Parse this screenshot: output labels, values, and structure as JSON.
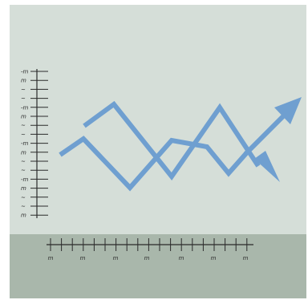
{
  "colors": {
    "frame": "#ffffff",
    "panel_top": "#d5ded8",
    "panel_bottom": "#a9b7ab",
    "line": "#6f9fd0",
    "axis": "#2b2b2b"
  },
  "illustration": {
    "icon": "trend-arrows-chart-icon",
    "y_axis_tick_glyphs": [
      "-m",
      "m",
      "~",
      "~",
      "-m",
      "m",
      "~",
      "~",
      "-m",
      "m",
      "~",
      "~",
      "-m",
      "m",
      "~",
      "~",
      "m"
    ],
    "x_axis_tick_glyphs": [
      "m",
      "m",
      "m",
      "m",
      "m",
      "m",
      "m"
    ]
  }
}
